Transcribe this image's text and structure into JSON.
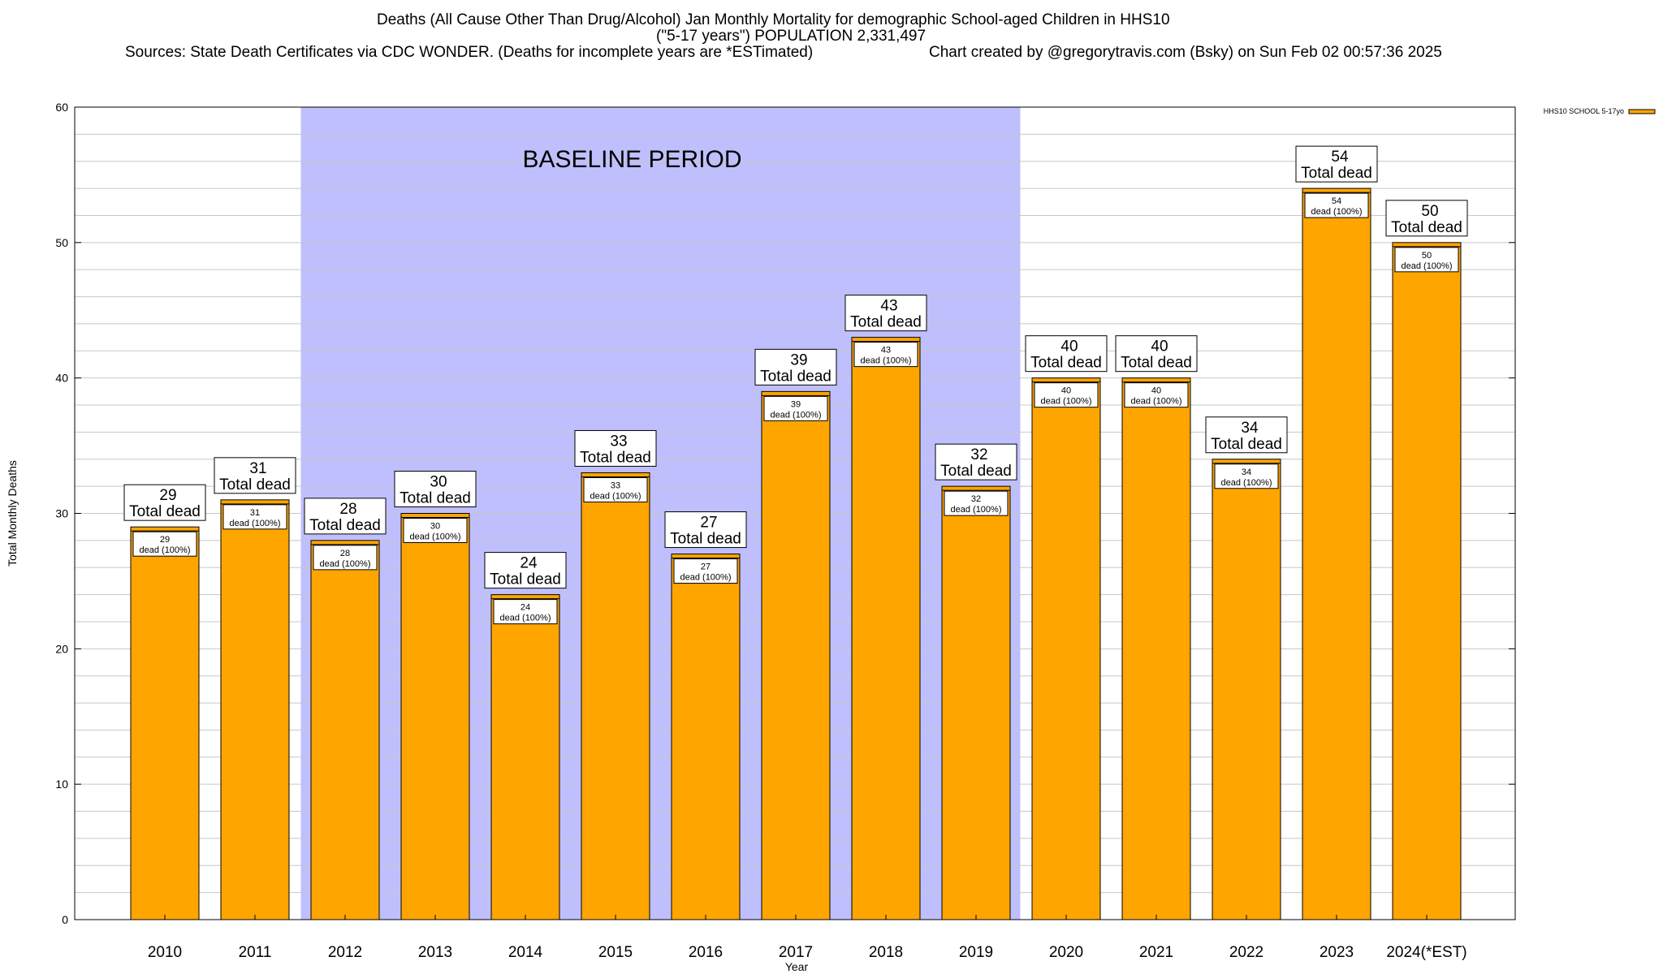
{
  "title": {
    "line1": "Deaths (All Cause Other Than Drug/Alcohol) Jan Monthly Mortality for demographic School-aged Children in HHS10",
    "line2": "(\"5-17 years\") POPULATION 2,331,497",
    "sources": "Sources: State Death Certificates via CDC WONDER. (Deaths for incomplete years are *ESTimated)",
    "credit": "Chart created by @gregorytravis.com (Bsky) on Sun Feb 02 00:57:36 2025"
  },
  "chart_data": {
    "type": "bar",
    "categories": [
      "2010",
      "2011",
      "2012",
      "2013",
      "2014",
      "2015",
      "2016",
      "2017",
      "2018",
      "2019",
      "2020",
      "2021",
      "2022",
      "2023",
      "2024(*EST)"
    ],
    "series": [
      {
        "name": "HHS10 SCHOOL 5-17yo",
        "values": [
          29,
          31,
          28,
          30,
          24,
          33,
          27,
          39,
          43,
          32,
          40,
          40,
          34,
          54,
          50
        ]
      }
    ],
    "xlabel": "Year",
    "ylabel": "Total Monthly Deaths",
    "ylim": [
      0,
      60
    ],
    "yticks": [
      0,
      10,
      20,
      30,
      40,
      50,
      60
    ],
    "grid": true,
    "legend_position": "top-right",
    "bar_label_top_suffix": "Total dead",
    "bar_label_inner_suffix": "dead (100%)",
    "baseline": {
      "label": "BASELINE PERIOD",
      "from": "2012",
      "to": "2019"
    },
    "colors": {
      "bar": "#ffa500",
      "baseline_fill": "#bfbffd",
      "grid": "#c8c8c8"
    }
  }
}
